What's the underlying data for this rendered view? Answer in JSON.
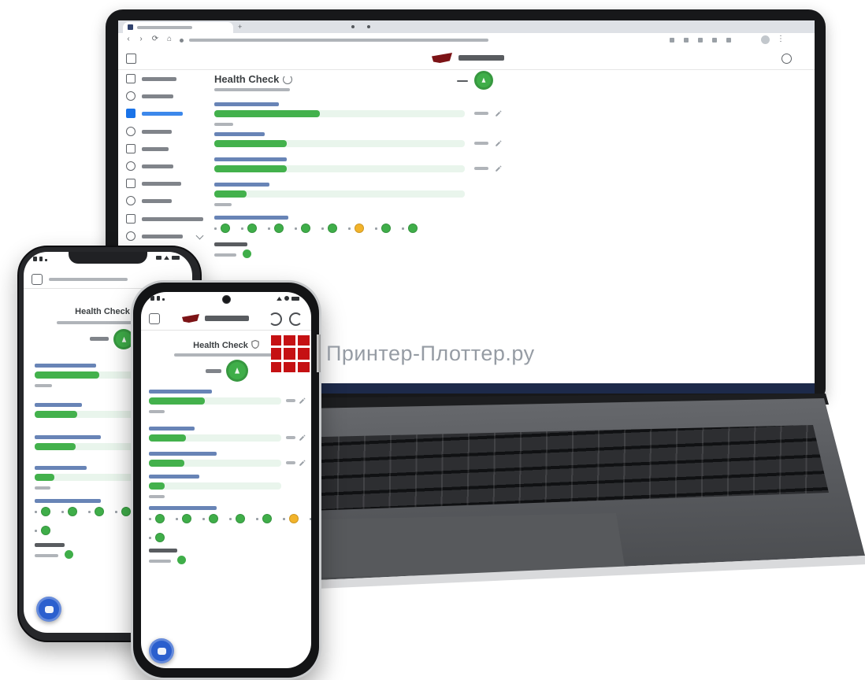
{
  "watermark": {
    "text": "Принтер-Плоттер.ру"
  },
  "colors": {
    "ok": "#3fae49",
    "ok_fill": "#43b14c",
    "warn": "#f2b32a",
    "track": "#e9f5ec",
    "active_blue": "#1a73e8",
    "brand_red": "#7c1316",
    "fab_blue": "#2b5fce",
    "navy": "#1d2a4a"
  },
  "laptop": {
    "page": {
      "title": "Health Check",
      "overall_status": "ok",
      "bars": [
        {
          "percent": 42
        },
        {
          "percent": 29
        },
        {
          "percent": 29
        },
        {
          "percent": 13
        }
      ],
      "indicators": [
        "ok",
        "ok",
        "ok",
        "ok",
        "ok",
        "warn",
        "ok",
        "ok"
      ],
      "self_check_indicator": "ok"
    },
    "sidebar_item_count": 11,
    "active_item_index": 2
  },
  "phone_left": {
    "page": {
      "title": "Health Check",
      "overall_status": "ok",
      "bars": [
        {
          "percent": 50
        },
        {
          "percent": 33
        },
        {
          "percent": 32
        },
        {
          "percent": 15
        }
      ],
      "indicators": [
        "ok",
        "ok",
        "ok",
        "ok",
        "ok"
      ],
      "indicators_wrap": [
        "ok"
      ],
      "self_check_indicator": "ok"
    }
  },
  "phone_right": {
    "page": {
      "title": "Health Check",
      "overall_status": "ok",
      "bars": [
        {
          "percent": 42
        },
        {
          "percent": 28
        },
        {
          "percent": 27
        },
        {
          "percent": 12
        }
      ],
      "indicators": [
        "ok",
        "ok",
        "ok",
        "ok",
        "ok",
        "warn",
        "ok"
      ],
      "indicators_wrap": [
        "ok"
      ],
      "self_check_indicator": "ok"
    }
  }
}
